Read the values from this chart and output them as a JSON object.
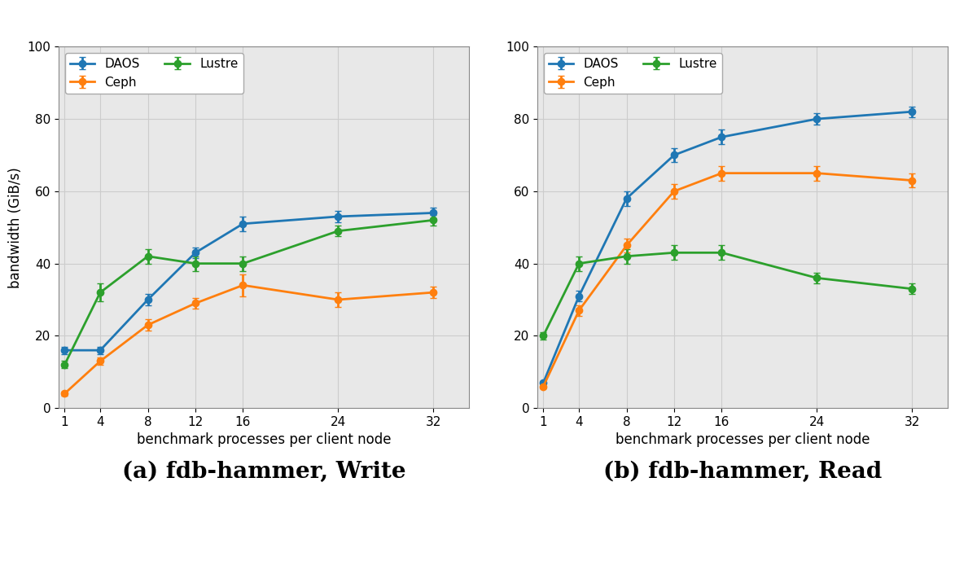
{
  "x": [
    1,
    4,
    8,
    12,
    16,
    24,
    32
  ],
  "write": {
    "daos": {
      "y": [
        16,
        16,
        30,
        43,
        51,
        53,
        54
      ],
      "yerr": [
        1.0,
        1.0,
        1.5,
        1.5,
        2.0,
        1.5,
        1.5
      ]
    },
    "ceph": {
      "y": [
        4,
        13,
        23,
        29,
        34,
        30,
        32
      ],
      "yerr": [
        0.5,
        1.0,
        1.5,
        1.5,
        3.0,
        2.0,
        1.5
      ]
    },
    "lustre": {
      "y": [
        12,
        32,
        42,
        40,
        40,
        49,
        52
      ],
      "yerr": [
        1.0,
        2.5,
        2.0,
        2.0,
        2.0,
        1.5,
        1.5
      ]
    }
  },
  "read": {
    "daos": {
      "y": [
        7,
        31,
        58,
        70,
        75,
        80,
        82
      ],
      "yerr": [
        0.5,
        1.5,
        2.0,
        2.0,
        2.0,
        1.5,
        1.5
      ]
    },
    "ceph": {
      "y": [
        6,
        27,
        45,
        60,
        65,
        65,
        63
      ],
      "yerr": [
        0.5,
        1.5,
        2.0,
        2.0,
        2.0,
        2.0,
        2.0
      ]
    },
    "lustre": {
      "y": [
        20,
        40,
        42,
        43,
        43,
        36,
        33
      ],
      "yerr": [
        1.0,
        2.0,
        2.0,
        2.0,
        2.0,
        1.5,
        1.5
      ]
    }
  },
  "colors": {
    "daos": "#1f77b4",
    "ceph": "#ff7f0e",
    "lustre": "#2ca02c"
  },
  "ylabel": "bandwidth (GiB/s)",
  "xlabel": "benchmark processes per client node",
  "ylim": [
    0,
    100
  ],
  "yticks": [
    0,
    20,
    40,
    60,
    80,
    100
  ],
  "caption_a": "(a) fdb-hammer, Write",
  "caption_b": "(b) fdb-hammer, Read",
  "caption_fontsize": 20,
  "legend_labels": [
    "DAOS",
    "Ceph",
    "Lustre"
  ],
  "marker": "o",
  "markersize": 6,
  "linewidth": 2.0,
  "grid_color": "#cccccc",
  "plot_bg_color": "#e8e8e8"
}
